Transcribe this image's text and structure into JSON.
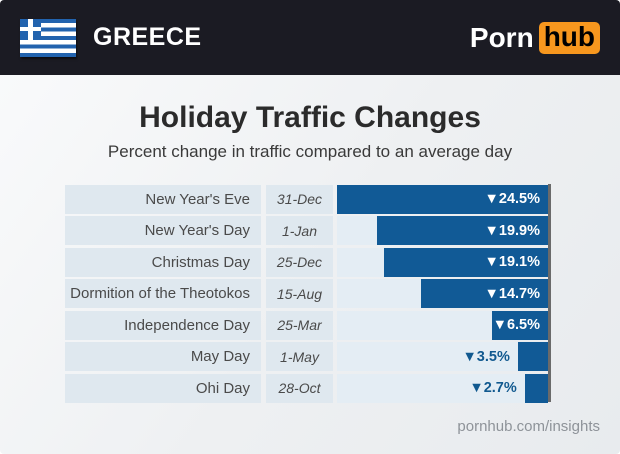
{
  "header": {
    "country": "GREECE",
    "logo_porn": "Porn",
    "logo_hub": "hub"
  },
  "main": {
    "title": "Holiday Traffic Changes",
    "subtitle": "Percent change in traffic compared to an average day"
  },
  "chart_data": {
    "type": "bar",
    "orientation": "horizontal",
    "title": "Holiday Traffic Changes",
    "subtitle": "Percent change in traffic compared to an average day",
    "unit": "percent change vs average day",
    "direction": "decrease",
    "scale_max": 24.5,
    "grid": false,
    "legend": "none",
    "categories": [
      "New Year's Eve",
      "New Year's Day",
      "Christmas Day",
      "Dormition of the Theotokos",
      "Independence Day",
      "May Day",
      "Ohi Day"
    ],
    "dates": [
      "31-Dec",
      "1-Jan",
      "25-Dec",
      "15-Aug",
      "25-Mar",
      "1-May",
      "28-Oct"
    ],
    "values": [
      -24.5,
      -19.9,
      -19.1,
      -14.7,
      -6.5,
      -3.5,
      -2.7
    ],
    "labels": [
      "▼24.5%",
      "▼19.9%",
      "▼19.1%",
      "▼14.7%",
      "▼6.5%",
      "▼3.5%",
      "▼2.7%"
    ]
  },
  "footer": {
    "link": "pornhub.com/insights"
  },
  "colors": {
    "header_bg": "#1b1b23",
    "logo_orange": "#f7971e",
    "bar_blue": "#115a96",
    "value_text_in_bar": "#ffffff",
    "value_text_outside": "#11598f",
    "row_bg": "#dfe8ef",
    "track_bg": "#e4edf4",
    "flag_blue": "#2263ae",
    "axis_line": "#6a6a6a"
  }
}
